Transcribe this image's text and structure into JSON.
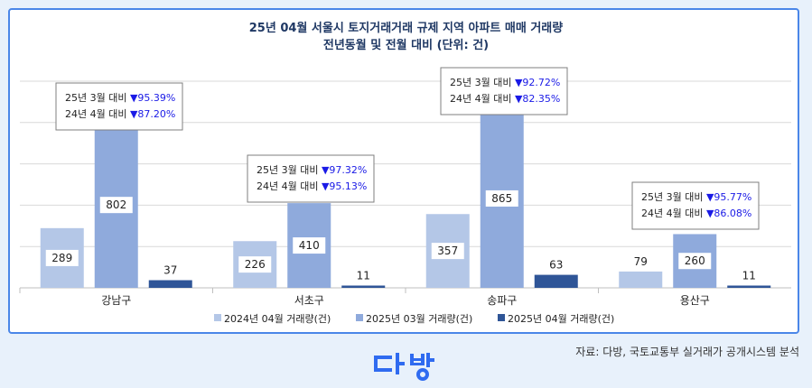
{
  "title": "25년 04월 서울시 토지거래거래 규제 지역 아파트 매매 거래량",
  "subtitle": "전년동월 및 전월 대비 (단위: 건)",
  "source": "자료: 다방, 국토교통부 실거래가 공개시스템 분석",
  "logo_text": "다방",
  "colors": {
    "s2024_04": "#b4c7e7",
    "s2025_03": "#8faadc",
    "s2025_04": "#2f5597",
    "down_text": "#1a1ae6",
    "title": "#1f3864",
    "logo": "#2f6bf0"
  },
  "chart_data": {
    "type": "bar",
    "categories": [
      "강남구",
      "서초구",
      "송파구",
      "용산구"
    ],
    "series": [
      {
        "name": "2024년 04월 거래량(건)",
        "values": [
          289,
          226,
          357,
          79
        ]
      },
      {
        "name": "2025년 03월 거래량(건)",
        "values": [
          802,
          410,
          865,
          260
        ]
      },
      {
        "name": "2025년 04월 거래량(건)",
        "values": [
          37,
          11,
          63,
          11
        ]
      }
    ],
    "ylim": [
      0,
      1000
    ],
    "grid": true,
    "legend_position": "bottom",
    "annotations": [
      {
        "category": "강남구",
        "line1_label": "25년 3월 대비",
        "line1_value": "▼95.39%",
        "line2_label": "24년 4월 대비",
        "line2_value": "▼87.20%"
      },
      {
        "category": "서초구",
        "line1_label": "25년 3월 대비",
        "line1_value": "▼97.32%",
        "line2_label": "24년 4월 대비",
        "line2_value": "▼95.13%"
      },
      {
        "category": "송파구",
        "line1_label": "25년 3월 대비",
        "line1_value": "▼92.72%",
        "line2_label": "24년 4월 대비",
        "line2_value": "▼82.35%"
      },
      {
        "category": "용산구",
        "line1_label": "25년 3월 대비",
        "line1_value": "▼95.77%",
        "line2_label": "24년 4월 대비",
        "line2_value": "▼86.08%"
      }
    ]
  }
}
